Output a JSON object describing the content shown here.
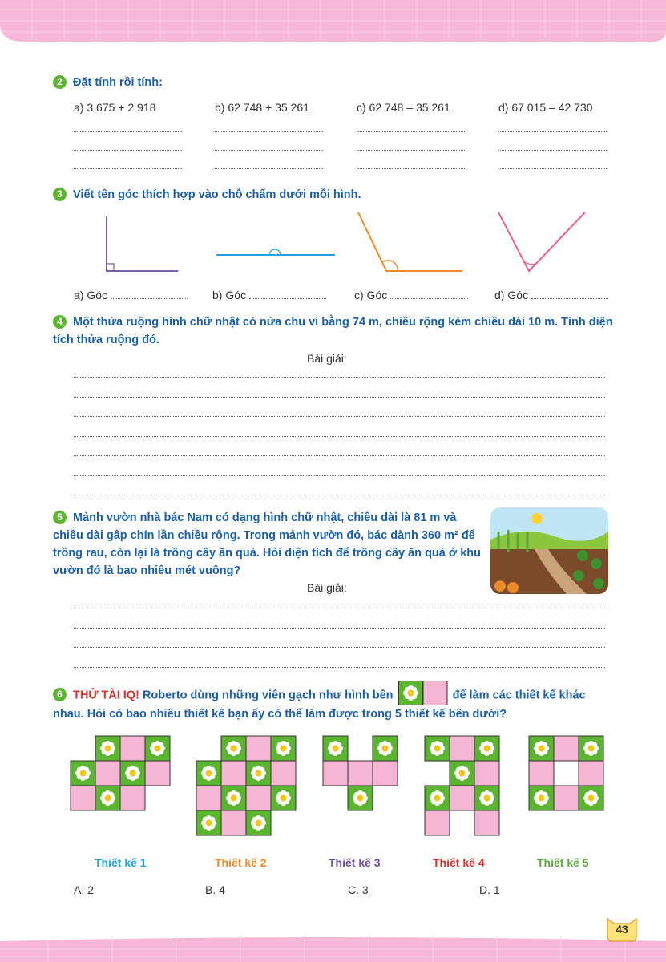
{
  "page_number": "43",
  "exercises": [
    {
      "number": "2",
      "title": "Đặt tính rồi tính:",
      "items": [
        "a) 3 675 + 2 918",
        "b) 62 748 + 35 261",
        "c) 62 748 – 35 261",
        "d) 67 015 – 42 730"
      ]
    },
    {
      "number": "3",
      "title": "Viết tên góc thích hợp vào chỗ chấm dưới mỗi hình.",
      "items": [
        "a) Góc",
        "b) Góc",
        "c) Góc",
        "d) Góc"
      ]
    },
    {
      "number": "4",
      "title": "Một thửa ruộng hình chữ nhật có nửa chu vi bằng 74 m, chiều rộng kém chiều dài 10 m. Tính diện tích thửa ruộng đó.",
      "solution_label": "Bài giải:"
    },
    {
      "number": "5",
      "title": "Mảnh vườn nhà bác Nam có dạng hình chữ nhật, chiều dài là 81 m và chiều dài gấp chín lần chiều rộng. Trong mảnh vườn đó, bác dành 360 m² để trồng rau, còn lại là trồng cây ăn quả. Hỏi diện tích để trồng cây ăn quả ở khu vườn đó là bao nhiêu mét vuông?",
      "solution_label": "Bài giải:"
    },
    {
      "number": "6",
      "highlight": "THỬ TÀI IQ!",
      "text_before": "Roberto dùng những viên gạch như hình bên",
      "text_after": "để làm các thiết kế khác nhau. Hỏi có bao nhiêu thiết kế bạn ấy có thể làm được trong 5 thiết kế bên dưới?",
      "designs": [
        {
          "name": "Thiết kế 1",
          "color": "#1aa7d8"
        },
        {
          "name": "Thiết kế 2",
          "color": "#f08a24"
        },
        {
          "name": "Thiết kế 3",
          "color": "#6a4fa0"
        },
        {
          "name": "Thiết kế 4",
          "color": "#d8312e"
        },
        {
          "name": "Thiết kế 5",
          "color": "#5aa63a"
        }
      ],
      "options": [
        "A. 2",
        "B. 4",
        "C. 3",
        "D. 1"
      ]
    }
  ]
}
